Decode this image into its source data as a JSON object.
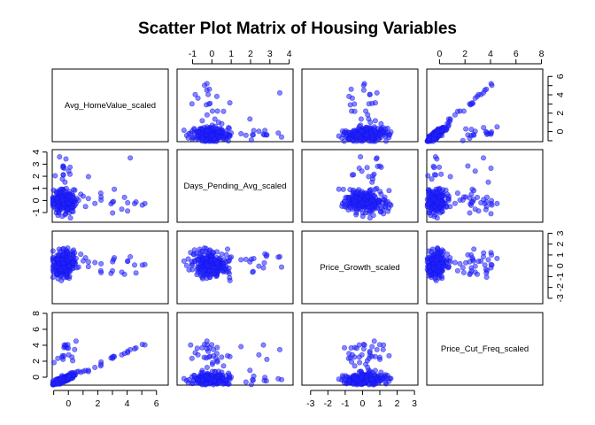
{
  "chart_data": {
    "type": "scatter",
    "title": "Scatter Plot Matrix of Housing Variables",
    "variables": [
      {
        "name": "Avg_HomeValue_scaled",
        "range": [
          -1.1,
          6.8
        ],
        "ticks": [
          -1,
          0,
          1,
          2,
          3,
          4,
          5,
          6
        ],
        "tick_labels": [
          "",
          "0",
          "",
          "2",
          "",
          "4",
          "",
          "6"
        ]
      },
      {
        "name": "Days_Pending_Avg_scaled",
        "range": [
          -1.8,
          4.2
        ],
        "ticks": [
          -1,
          0,
          1,
          2,
          3,
          4
        ],
        "tick_labels": [
          "-1",
          "0",
          "1",
          "2",
          "3",
          "4"
        ]
      },
      {
        "name": "Price_Growth_scaled",
        "range": [
          -3.5,
          3.2
        ],
        "ticks": [
          -3,
          -2,
          -1,
          0,
          1,
          2,
          3
        ],
        "tick_labels": [
          "-3",
          "-2",
          "-1",
          "0",
          "1",
          "2",
          "3"
        ]
      },
      {
        "name": "Price_Cut_Freq_scaled",
        "range": [
          -1.0,
          8.1
        ],
        "ticks": [
          0,
          2,
          4,
          6,
          8
        ],
        "tick_labels": [
          "0",
          "2",
          "4",
          "6",
          "8"
        ]
      }
    ],
    "grid": false,
    "legend": "none",
    "point_color": "#2323ff",
    "approximate_points": 240
  }
}
